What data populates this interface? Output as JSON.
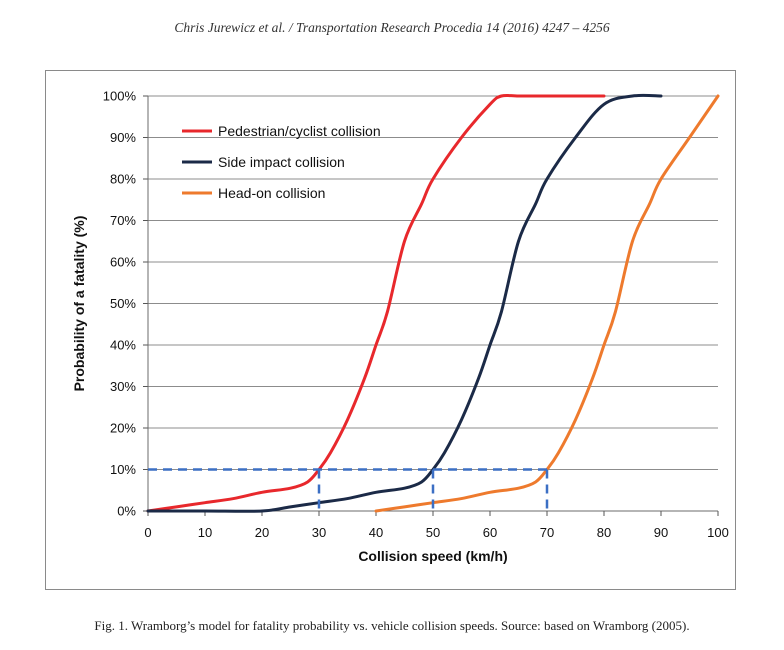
{
  "header": {
    "running_head": "Chris Jurewicz et al. / Transportation Research Procedia 14 (2016) 4247 – 4256"
  },
  "caption": {
    "text": "Fig. 1. Wramborg’s model for fatality probability vs. vehicle collision speeds. Source: based on Wramborg (2005)."
  },
  "chart_data": {
    "type": "line",
    "xlabel": "Collision speed (km/h)",
    "ylabel": "Probability of a fatality (%)",
    "xlim": [
      0,
      100
    ],
    "ylim": [
      0,
      100
    ],
    "x_ticks": [
      "0",
      "10",
      "20",
      "30",
      "40",
      "50",
      "60",
      "70",
      "80",
      "90",
      "100"
    ],
    "y_ticks": [
      "0%",
      "10%",
      "20%",
      "30%",
      "40%",
      "50%",
      "60%",
      "70%",
      "80%",
      "90%",
      "100%"
    ],
    "grid": "horizontal",
    "legend_position": "top-left",
    "series": [
      {
        "name": "Pedestrian/cyclist collision",
        "color": "#e8282c",
        "x": [
          0,
          5,
          10,
          15,
          20,
          25,
          28,
          30,
          32,
          35,
          38,
          40,
          42,
          45,
          48,
          50,
          55,
          60,
          62,
          65,
          70,
          75,
          80
        ],
        "y": [
          0,
          1,
          2,
          3,
          4.5,
          5.5,
          7,
          10,
          14,
          22,
          32,
          40,
          48,
          65,
          74,
          80,
          90,
          98,
          100,
          100,
          100,
          100,
          100
        ]
      },
      {
        "name": "Side impact collision",
        "color": "#1b2a47",
        "x": [
          0,
          10,
          20,
          25,
          30,
          35,
          40,
          45,
          48,
          50,
          52,
          55,
          58,
          60,
          62,
          65,
          68,
          70,
          75,
          80,
          85,
          90
        ],
        "y": [
          0,
          0,
          0,
          1,
          2,
          3,
          4.5,
          5.5,
          7,
          10,
          14,
          22,
          32,
          40,
          48,
          65,
          74,
          80,
          90,
          98,
          100,
          100
        ]
      },
      {
        "name": "Head-on collision",
        "color": "#ee7a2d",
        "x": [
          40,
          45,
          50,
          55,
          60,
          65,
          68,
          70,
          72,
          75,
          78,
          80,
          82,
          85,
          88,
          90,
          95,
          100
        ],
        "y": [
          0,
          1,
          2,
          3,
          4.5,
          5.5,
          7,
          10,
          14,
          22,
          32,
          40,
          48,
          65,
          74,
          80,
          90,
          100
        ]
      }
    ],
    "reference_lines": {
      "color": "#3b6fc4",
      "threshold_y": 10,
      "speeds_x": [
        30,
        50,
        70
      ]
    }
  }
}
